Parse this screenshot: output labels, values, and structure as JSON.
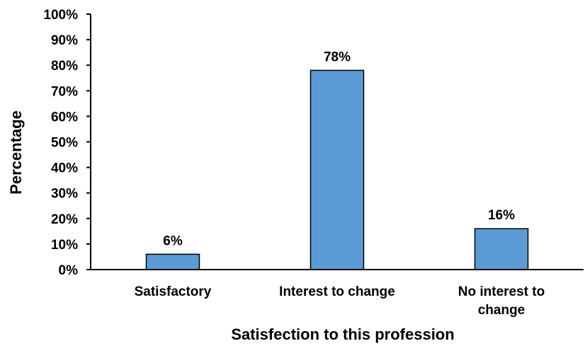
{
  "chart_data": {
    "type": "bar",
    "title": "",
    "xlabel": "Satisfection to this profession",
    "ylabel": "Percentage",
    "categories": [
      "Satisfactory",
      "Interest to change",
      "No interest to change"
    ],
    "category_lines": [
      [
        "Satisfactory"
      ],
      [
        "Interest to change"
      ],
      [
        "No interest to",
        "change"
      ]
    ],
    "values": [
      6,
      78,
      16
    ],
    "data_labels": [
      "6%",
      "78%",
      "16%"
    ],
    "ylim": [
      0,
      100
    ],
    "yticks": [
      0,
      10,
      20,
      30,
      40,
      50,
      60,
      70,
      80,
      90,
      100
    ],
    "ytick_labels": [
      "0%",
      "10%",
      "20%",
      "30%",
      "40%",
      "50%",
      "60%",
      "70%",
      "80%",
      "90%",
      "100%"
    ],
    "grid": false,
    "legend": "none",
    "colors": {
      "bar_fill": "#5B9BD5",
      "bar_stroke": "#000000",
      "axis": "#000000"
    }
  }
}
